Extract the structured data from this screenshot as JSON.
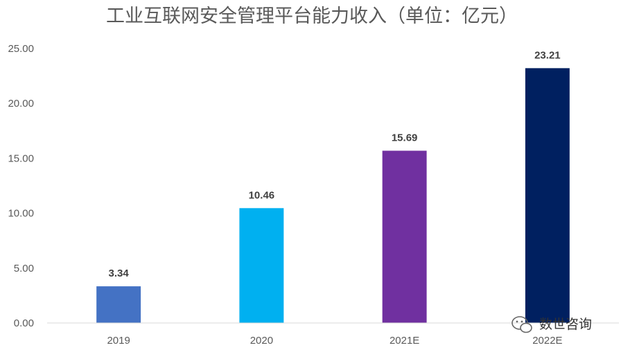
{
  "chart_data": {
    "type": "bar",
    "title": "工业互联网安全管理平台能力收入（单位：亿元）",
    "categories": [
      "2019",
      "2020",
      "2021E",
      "2022E"
    ],
    "values": [
      3.34,
      10.46,
      15.69,
      23.21
    ],
    "data_labels": [
      "3.34",
      "10.46",
      "15.69",
      "23.21"
    ],
    "bar_colors": [
      "#4472C4",
      "#00B0F0",
      "#7030A0",
      "#002060"
    ],
    "yticks": [
      "0.00",
      "5.00",
      "10.00",
      "15.00",
      "20.00",
      "25.00"
    ],
    "ylim": [
      0,
      25
    ],
    "grid": false,
    "legend": "none"
  },
  "watermark": {
    "text": "数世咨询",
    "icon": "wechat-icon"
  }
}
